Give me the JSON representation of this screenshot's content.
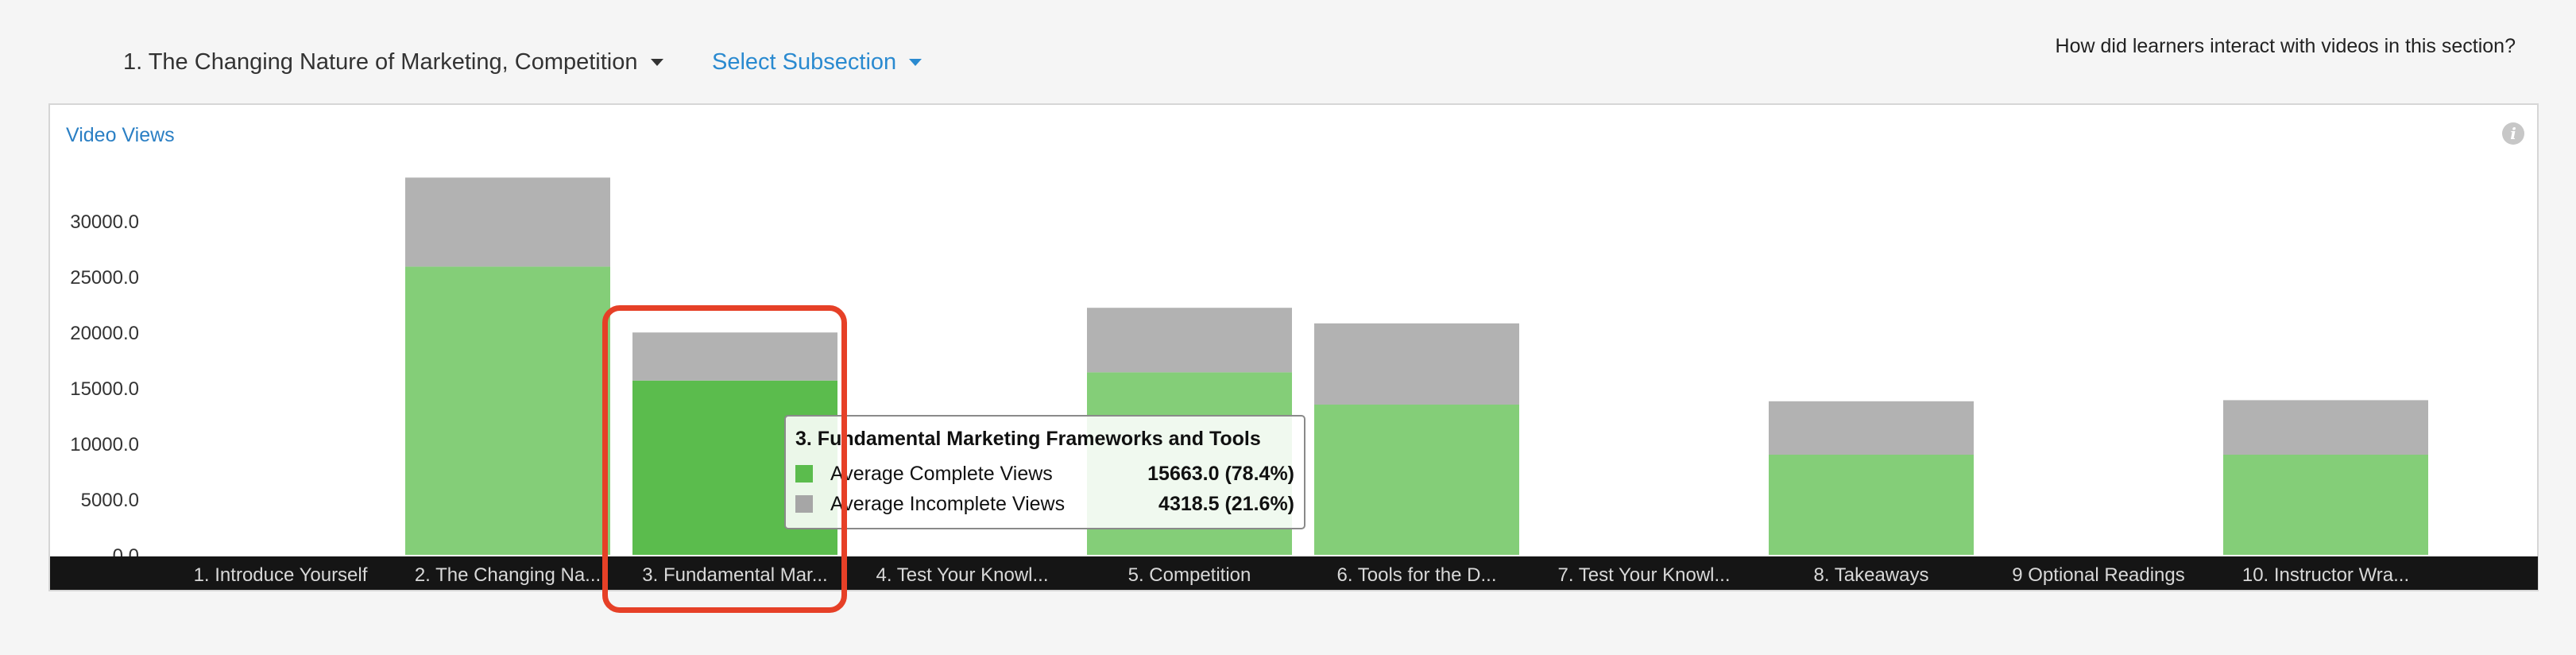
{
  "header": {
    "section_select": "1. The Changing Nature of Marketing, Competition",
    "subsection_select": "Select Subsection",
    "question": "How did learners interact with videos in this section?"
  },
  "panel": {
    "title": "Video Views"
  },
  "colors": {
    "complete": "#84ce78",
    "complete_highlight": "#5bbc4d",
    "incomplete": "#b2b2b2",
    "axis_bar": "#151515",
    "highlight_border": "#e64027"
  },
  "chart_data": {
    "type": "bar",
    "stacked": true,
    "title": "Video Views",
    "categories": [
      "1. Introduce Yourself",
      "2. The Changing Na...",
      "3. Fundamental Mar...",
      "4. Test Your Knowl...",
      "5. Competition",
      "6. Tools for the D...",
      "7. Test Your Knowl...",
      "8. Takeaways",
      "9 Optional Readings",
      "10. Instructor Wra..."
    ],
    "series": [
      {
        "name": "Average Complete Views",
        "values": [
          0,
          25900,
          15663,
          0,
          16400,
          13500,
          0,
          9000,
          0,
          9000
        ]
      },
      {
        "name": "Average Incomplete Views",
        "values": [
          0,
          8000,
          4318.5,
          0,
          5800,
          7300,
          0,
          4800,
          0,
          4900
        ]
      }
    ],
    "yticks": [
      "0.0",
      "5000.0",
      "10000.0",
      "15000.0",
      "20000.0",
      "25000.0",
      "30000.0"
    ],
    "ylim": [
      0,
      35000
    ],
    "highlighted_index": 2
  },
  "tooltip": {
    "title": "3. Fundamental Marketing Frameworks and Tools",
    "rows": [
      {
        "label": "Average Complete Views",
        "value": "15663.0 (78.4%)"
      },
      {
        "label": "Average Incomplete Views",
        "value": "4318.5 (21.6%)"
      }
    ]
  }
}
